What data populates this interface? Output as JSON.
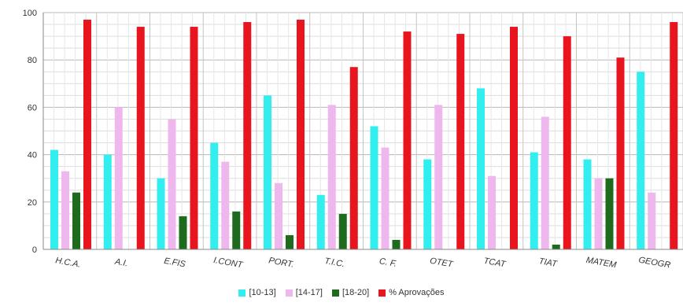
{
  "chart_data": {
    "type": "bar",
    "title": "",
    "xlabel": "",
    "ylabel": "",
    "ylim": [
      0,
      100
    ],
    "yticks": [
      "0",
      "20",
      "40",
      "60",
      "80",
      "100"
    ],
    "grid": true,
    "legend_position": "bottom",
    "categories": [
      "H.C.A.",
      "A.I.",
      "E.FIS",
      "I.CONT",
      "PORT.",
      "T.I.C.",
      "C. F.",
      "OTET",
      "TCAT",
      "TIAT",
      "MATEM",
      "GEOGR"
    ],
    "series": [
      {
        "name": "[10-13]",
        "color": "#33eeee",
        "values": [
          42,
          40,
          30,
          45,
          65,
          23,
          52,
          38,
          68,
          41,
          38,
          75
        ]
      },
      {
        "name": "[14-17]",
        "color": "#eeb8ee",
        "values": [
          33,
          60,
          55,
          37,
          28,
          61,
          43,
          61,
          31,
          56,
          30,
          24
        ]
      },
      {
        "name": "[18-20]",
        "color": "#1e6b1e",
        "values": [
          24,
          0,
          14,
          16,
          6,
          15,
          4,
          0,
          0,
          2,
          30,
          0
        ]
      },
      {
        "name": "% Aprovações",
        "color": "#e8141e",
        "values": [
          97,
          94,
          94,
          96,
          97,
          77,
          92,
          91,
          94,
          90,
          81,
          96
        ]
      }
    ]
  }
}
